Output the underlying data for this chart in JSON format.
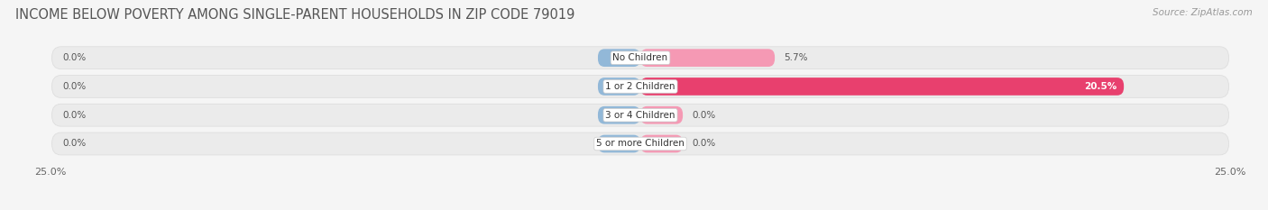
{
  "title": "INCOME BELOW POVERTY AMONG SINGLE-PARENT HOUSEHOLDS IN ZIP CODE 79019",
  "source": "Source: ZipAtlas.com",
  "categories": [
    "No Children",
    "1 or 2 Children",
    "3 or 4 Children",
    "5 or more Children"
  ],
  "single_father": [
    0.0,
    0.0,
    0.0,
    0.0
  ],
  "single_mother": [
    5.7,
    20.5,
    0.0,
    0.0
  ],
  "xlim": 25.0,
  "stub_size": 1.8,
  "color_father": "#92b8d8",
  "color_mother": "#f599b4",
  "color_mother_bright": "#e8406e",
  "bar_height": 0.62,
  "bg_color": "#f5f5f5",
  "bar_bg_color": "#ebebeb",
  "bar_bg_edge": "#dedede",
  "title_fontsize": 10.5,
  "source_fontsize": 7.5,
  "label_fontsize": 7.5,
  "category_fontsize": 7.5,
  "legend_fontsize": 8.5,
  "axis_label_fontsize": 8
}
